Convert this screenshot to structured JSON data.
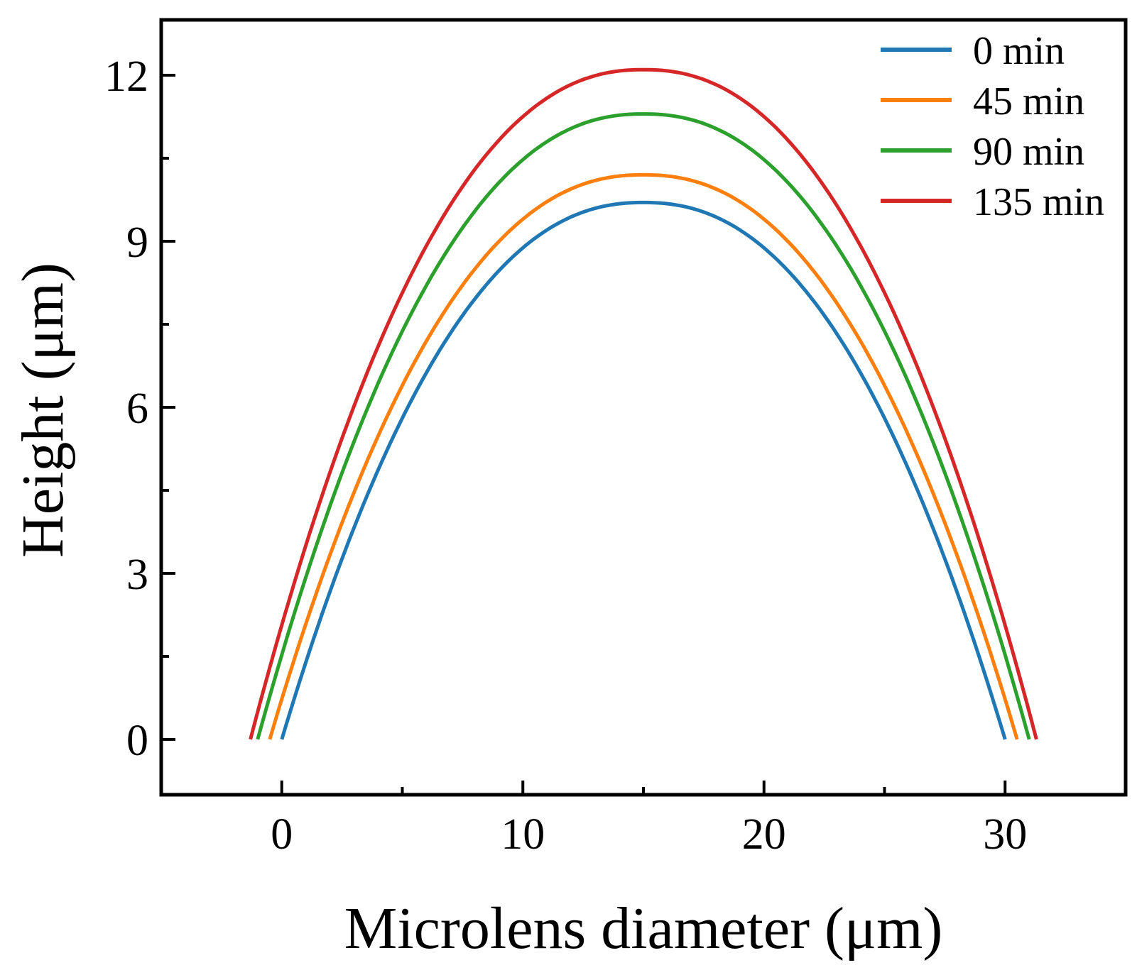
{
  "chart_data": {
    "type": "line",
    "title": "",
    "xlabel": "Microlens diameter (μm)",
    "ylabel": "Height (μm)",
    "xlim": [
      -5,
      35
    ],
    "ylim": [
      -1,
      13
    ],
    "xticks": [
      0,
      10,
      20,
      30
    ],
    "xtick_labels": [
      "0",
      "10",
      "20",
      "30"
    ],
    "yticks": [
      0,
      3,
      6,
      9,
      12
    ],
    "ytick_labels": [
      "0",
      "3",
      "6",
      "9",
      "12"
    ],
    "grid": false,
    "legend_position": "top-right",
    "series": [
      {
        "name": "0  min",
        "color": "#1f77b4",
        "x_start": 0.0,
        "x_end": 30.0,
        "peak_height": 9.7
      },
      {
        "name": "45 min",
        "color": "#ff7f0e",
        "x_start": -0.5,
        "x_end": 30.5,
        "peak_height": 10.2
      },
      {
        "name": "90 min",
        "color": "#2ca02c",
        "x_start": -1.0,
        "x_end": 31.0,
        "peak_height": 11.3
      },
      {
        "name": "135 min",
        "color": "#d62728",
        "x_start": -1.3,
        "x_end": 31.3,
        "peak_height": 12.1
      }
    ]
  }
}
